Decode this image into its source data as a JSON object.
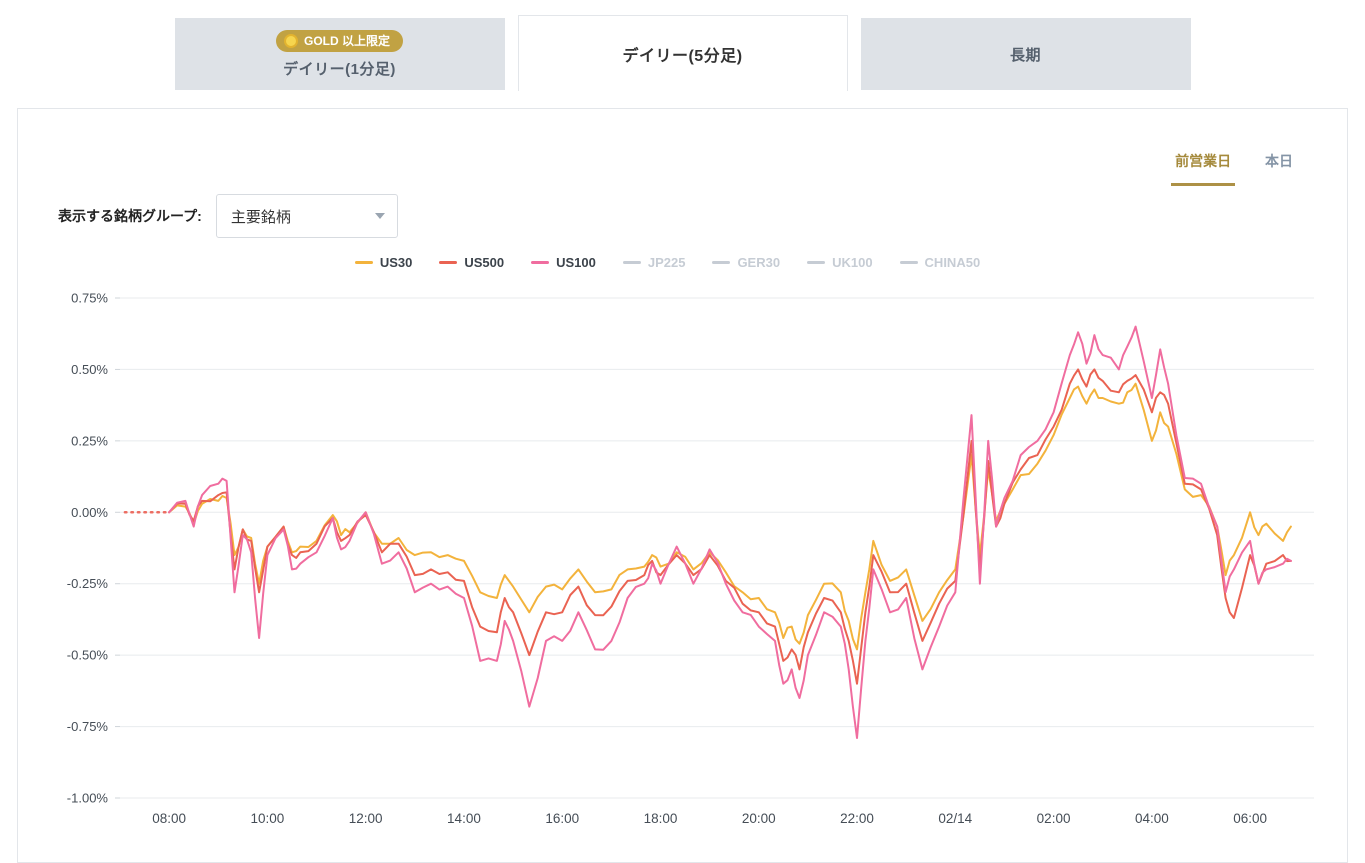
{
  "tabs": [
    {
      "label": "デイリー(1分足)",
      "badge": "GOLD 以上限定",
      "active": false
    },
    {
      "label": "デイリー(5分足)",
      "active": true
    },
    {
      "label": "長期",
      "active": false
    }
  ],
  "period_toggle": {
    "previous_day": "前営業日",
    "today": "本日"
  },
  "symbol_group": {
    "label": "表示する銘柄グループ:",
    "selected": "主要銘柄"
  },
  "legend": {
    "items": [
      {
        "label": "US30",
        "color": "#f3b33c",
        "active": true
      },
      {
        "label": "US500",
        "color": "#ea6352",
        "active": true
      },
      {
        "label": "US100",
        "color": "#f06d9f",
        "active": true
      },
      {
        "label": "JP225",
        "color": "#c6ccd4",
        "active": false
      },
      {
        "label": "GER30",
        "color": "#c6ccd4",
        "active": false
      },
      {
        "label": "UK100",
        "color": "#c6ccd4",
        "active": false
      },
      {
        "label": "CHINA50",
        "color": "#c6ccd4",
        "active": false
      }
    ]
  },
  "chart_data": {
    "type": "line",
    "title": "",
    "xlabel": "",
    "ylabel": "",
    "grid": true,
    "legend_position": "top",
    "xlim": [
      7.0,
      31.3
    ],
    "ylim": [
      -1.0,
      0.75
    ],
    "yticks": [
      {
        "v": 0.75,
        "label": "0.75%"
      },
      {
        "v": 0.5,
        "label": "0.50%"
      },
      {
        "v": 0.25,
        "label": "0.25%"
      },
      {
        "v": 0.0,
        "label": "0.00%"
      },
      {
        "v": -0.25,
        "label": "-0.25%"
      },
      {
        "v": -0.5,
        "label": "-0.50%"
      },
      {
        "v": -0.75,
        "label": "-0.75%"
      },
      {
        "v": -1.0,
        "label": "-1.00%"
      }
    ],
    "xticks": [
      {
        "t": 8,
        "label": "08:00"
      },
      {
        "t": 10,
        "label": "10:00"
      },
      {
        "t": 12,
        "label": "12:00"
      },
      {
        "t": 14,
        "label": "14:00"
      },
      {
        "t": 16,
        "label": "16:00"
      },
      {
        "t": 18,
        "label": "18:00"
      },
      {
        "t": 20,
        "label": "20:00"
      },
      {
        "t": 22,
        "label": "22:00"
      },
      {
        "t": 24,
        "label": "02/14"
      },
      {
        "t": 26,
        "label": "02:00"
      },
      {
        "t": 28,
        "label": "04:00"
      },
      {
        "t": 30,
        "label": "06:00"
      }
    ],
    "baseline": {
      "from": 7.1,
      "to": 8.02,
      "value": 0,
      "color": "#ec6d62"
    },
    "series": [
      {
        "name": "US30",
        "color": "#f3b33c",
        "active": true,
        "points": [
          [
            8,
            0
          ],
          [
            8.33,
            0.02
          ],
          [
            8.5,
            -0.04
          ],
          [
            8.67,
            0.03
          ],
          [
            9,
            0.04
          ],
          [
            9.17,
            0.05
          ],
          [
            9.33,
            -0.15
          ],
          [
            9.5,
            -0.06
          ],
          [
            9.67,
            -0.09
          ],
          [
            9.83,
            -0.25
          ],
          [
            10,
            -0.12
          ],
          [
            10.33,
            -0.05
          ],
          [
            10.5,
            -0.14
          ],
          [
            10.67,
            -0.12
          ],
          [
            11,
            -0.1
          ],
          [
            11.33,
            -0.01
          ],
          [
            11.5,
            -0.08
          ],
          [
            11.67,
            -0.07
          ],
          [
            12,
            0
          ],
          [
            12.33,
            -0.11
          ],
          [
            12.67,
            -0.09
          ],
          [
            13,
            -0.15
          ],
          [
            13.33,
            -0.14
          ],
          [
            13.67,
            -0.15
          ],
          [
            14,
            -0.17
          ],
          [
            14.33,
            -0.28
          ],
          [
            14.67,
            -0.3
          ],
          [
            14.83,
            -0.22
          ],
          [
            15,
            -0.26
          ],
          [
            15.33,
            -0.35
          ],
          [
            15.67,
            -0.26
          ],
          [
            16,
            -0.27
          ],
          [
            16.33,
            -0.2
          ],
          [
            16.67,
            -0.28
          ],
          [
            17,
            -0.27
          ],
          [
            17.33,
            -0.2
          ],
          [
            17.67,
            -0.19
          ],
          [
            17.83,
            -0.15
          ],
          [
            18,
            -0.19
          ],
          [
            18.33,
            -0.14
          ],
          [
            18.67,
            -0.2
          ],
          [
            19,
            -0.14
          ],
          [
            19.33,
            -0.21
          ],
          [
            19.67,
            -0.28
          ],
          [
            20,
            -0.3
          ],
          [
            20.33,
            -0.35
          ],
          [
            20.5,
            -0.44
          ],
          [
            20.67,
            -0.4
          ],
          [
            20.83,
            -0.46
          ],
          [
            21,
            -0.36
          ],
          [
            21.33,
            -0.25
          ],
          [
            21.67,
            -0.28
          ],
          [
            21.83,
            -0.38
          ],
          [
            22,
            -0.48
          ],
          [
            22.17,
            -0.28
          ],
          [
            22.33,
            -0.1
          ],
          [
            22.67,
            -0.24
          ],
          [
            23,
            -0.2
          ],
          [
            23.33,
            -0.38
          ],
          [
            23.67,
            -0.28
          ],
          [
            24,
            -0.2
          ],
          [
            24.33,
            0.2
          ],
          [
            24.5,
            -0.15
          ],
          [
            24.67,
            0.15
          ],
          [
            24.83,
            -0.03
          ],
          [
            25,
            0.03
          ],
          [
            25.33,
            0.13
          ],
          [
            25.67,
            0.17
          ],
          [
            26,
            0.27
          ],
          [
            26.33,
            0.4
          ],
          [
            26.5,
            0.44
          ],
          [
            26.67,
            0.38
          ],
          [
            26.83,
            0.43
          ],
          [
            27,
            0.4
          ],
          [
            27.33,
            0.38
          ],
          [
            27.5,
            0.42
          ],
          [
            27.67,
            0.45
          ],
          [
            28,
            0.25
          ],
          [
            28.17,
            0.35
          ],
          [
            28.33,
            0.3
          ],
          [
            28.67,
            0.08
          ],
          [
            29,
            0.06
          ],
          [
            29.33,
            -0.05
          ],
          [
            29.5,
            -0.22
          ],
          [
            29.67,
            -0.15
          ],
          [
            30,
            0
          ],
          [
            30.17,
            -0.08
          ],
          [
            30.33,
            -0.04
          ],
          [
            30.67,
            -0.1
          ],
          [
            30.83,
            -0.05
          ]
        ]
      },
      {
        "name": "US500",
        "color": "#ea6352",
        "active": true,
        "points": [
          [
            8,
            0
          ],
          [
            8.33,
            0.03
          ],
          [
            8.5,
            -0.03
          ],
          [
            8.67,
            0.04
          ],
          [
            9,
            0.06
          ],
          [
            9.17,
            0.07
          ],
          [
            9.33,
            -0.2
          ],
          [
            9.5,
            -0.06
          ],
          [
            9.67,
            -0.1
          ],
          [
            9.83,
            -0.28
          ],
          [
            10,
            -0.12
          ],
          [
            10.33,
            -0.05
          ],
          [
            10.5,
            -0.15
          ],
          [
            10.67,
            -0.14
          ],
          [
            11,
            -0.11
          ],
          [
            11.33,
            -0.02
          ],
          [
            11.5,
            -0.1
          ],
          [
            11.67,
            -0.08
          ],
          [
            12,
            -0.01
          ],
          [
            12.33,
            -0.14
          ],
          [
            12.67,
            -0.11
          ],
          [
            13,
            -0.22
          ],
          [
            13.33,
            -0.2
          ],
          [
            13.67,
            -0.21
          ],
          [
            14,
            -0.24
          ],
          [
            14.33,
            -0.4
          ],
          [
            14.67,
            -0.42
          ],
          [
            14.83,
            -0.3
          ],
          [
            15,
            -0.35
          ],
          [
            15.33,
            -0.5
          ],
          [
            15.67,
            -0.35
          ],
          [
            16,
            -0.35
          ],
          [
            16.33,
            -0.26
          ],
          [
            16.67,
            -0.36
          ],
          [
            17,
            -0.33
          ],
          [
            17.33,
            -0.24
          ],
          [
            17.67,
            -0.22
          ],
          [
            17.83,
            -0.17
          ],
          [
            18,
            -0.22
          ],
          [
            18.33,
            -0.15
          ],
          [
            18.67,
            -0.22
          ],
          [
            19,
            -0.15
          ],
          [
            19.33,
            -0.24
          ],
          [
            19.67,
            -0.32
          ],
          [
            20,
            -0.35
          ],
          [
            20.33,
            -0.4
          ],
          [
            20.5,
            -0.52
          ],
          [
            20.67,
            -0.48
          ],
          [
            20.83,
            -0.55
          ],
          [
            21,
            -0.42
          ],
          [
            21.33,
            -0.3
          ],
          [
            21.67,
            -0.35
          ],
          [
            21.83,
            -0.45
          ],
          [
            22,
            -0.6
          ],
          [
            22.17,
            -0.35
          ],
          [
            22.33,
            -0.15
          ],
          [
            22.67,
            -0.28
          ],
          [
            23,
            -0.25
          ],
          [
            23.33,
            -0.45
          ],
          [
            23.67,
            -0.32
          ],
          [
            24,
            -0.24
          ],
          [
            24.33,
            0.25
          ],
          [
            24.5,
            -0.2
          ],
          [
            24.67,
            0.18
          ],
          [
            24.83,
            -0.05
          ],
          [
            25,
            0.03
          ],
          [
            25.33,
            0.15
          ],
          [
            25.67,
            0.2
          ],
          [
            26,
            0.3
          ],
          [
            26.33,
            0.45
          ],
          [
            26.5,
            0.5
          ],
          [
            26.67,
            0.44
          ],
          [
            26.83,
            0.5
          ],
          [
            27,
            0.46
          ],
          [
            27.33,
            0.42
          ],
          [
            27.5,
            0.46
          ],
          [
            27.67,
            0.48
          ],
          [
            28,
            0.35
          ],
          [
            28.17,
            0.42
          ],
          [
            28.33,
            0.38
          ],
          [
            28.67,
            0.1
          ],
          [
            29,
            0.08
          ],
          [
            29.33,
            -0.08
          ],
          [
            29.5,
            -0.3
          ],
          [
            29.67,
            -0.37
          ],
          [
            30,
            -0.15
          ],
          [
            30.17,
            -0.25
          ],
          [
            30.33,
            -0.18
          ],
          [
            30.67,
            -0.15
          ],
          [
            30.83,
            -0.17
          ]
        ]
      },
      {
        "name": "US100",
        "color": "#f06d9f",
        "active": true,
        "points": [
          [
            8,
            0
          ],
          [
            8.33,
            0.04
          ],
          [
            8.5,
            -0.05
          ],
          [
            8.67,
            0.06
          ],
          [
            9,
            0.1
          ],
          [
            9.17,
            0.11
          ],
          [
            9.33,
            -0.28
          ],
          [
            9.5,
            -0.08
          ],
          [
            9.67,
            -0.14
          ],
          [
            9.83,
            -0.44
          ],
          [
            10,
            -0.15
          ],
          [
            10.33,
            -0.06
          ],
          [
            10.5,
            -0.2
          ],
          [
            10.67,
            -0.18
          ],
          [
            11,
            -0.14
          ],
          [
            11.33,
            -0.02
          ],
          [
            11.5,
            -0.13
          ],
          [
            11.67,
            -0.1
          ],
          [
            12,
            0
          ],
          [
            12.33,
            -0.18
          ],
          [
            12.67,
            -0.14
          ],
          [
            13,
            -0.28
          ],
          [
            13.33,
            -0.25
          ],
          [
            13.67,
            -0.26
          ],
          [
            14,
            -0.3
          ],
          [
            14.33,
            -0.52
          ],
          [
            14.67,
            -0.52
          ],
          [
            14.83,
            -0.38
          ],
          [
            15,
            -0.45
          ],
          [
            15.33,
            -0.68
          ],
          [
            15.67,
            -0.45
          ],
          [
            16,
            -0.45
          ],
          [
            16.33,
            -0.35
          ],
          [
            16.67,
            -0.48
          ],
          [
            17,
            -0.45
          ],
          [
            17.33,
            -0.3
          ],
          [
            17.67,
            -0.25
          ],
          [
            17.83,
            -0.18
          ],
          [
            18,
            -0.25
          ],
          [
            18.33,
            -0.12
          ],
          [
            18.67,
            -0.25
          ],
          [
            19,
            -0.13
          ],
          [
            19.33,
            -0.25
          ],
          [
            19.67,
            -0.35
          ],
          [
            20,
            -0.4
          ],
          [
            20.33,
            -0.45
          ],
          [
            20.5,
            -0.6
          ],
          [
            20.67,
            -0.55
          ],
          [
            20.83,
            -0.65
          ],
          [
            21,
            -0.5
          ],
          [
            21.33,
            -0.35
          ],
          [
            21.67,
            -0.4
          ],
          [
            21.83,
            -0.55
          ],
          [
            22,
            -0.79
          ],
          [
            22.17,
            -0.45
          ],
          [
            22.33,
            -0.2
          ],
          [
            22.67,
            -0.35
          ],
          [
            23,
            -0.3
          ],
          [
            23.33,
            -0.55
          ],
          [
            23.67,
            -0.4
          ],
          [
            24,
            -0.28
          ],
          [
            24.33,
            0.34
          ],
          [
            24.5,
            -0.25
          ],
          [
            24.67,
            0.25
          ],
          [
            24.83,
            -0.05
          ],
          [
            25,
            0.05
          ],
          [
            25.33,
            0.2
          ],
          [
            25.67,
            0.25
          ],
          [
            26,
            0.35
          ],
          [
            26.33,
            0.55
          ],
          [
            26.5,
            0.63
          ],
          [
            26.67,
            0.52
          ],
          [
            26.83,
            0.62
          ],
          [
            27,
            0.55
          ],
          [
            27.33,
            0.5
          ],
          [
            27.5,
            0.58
          ],
          [
            27.67,
            0.65
          ],
          [
            28,
            0.4
          ],
          [
            28.17,
            0.57
          ],
          [
            28.33,
            0.45
          ],
          [
            28.67,
            0.12
          ],
          [
            29,
            0.1
          ],
          [
            29.33,
            -0.05
          ],
          [
            29.5,
            -0.28
          ],
          [
            29.67,
            -0.2
          ],
          [
            30,
            -0.1
          ],
          [
            30.17,
            -0.25
          ],
          [
            30.33,
            -0.2
          ],
          [
            30.67,
            -0.18
          ],
          [
            30.83,
            -0.17
          ]
        ]
      },
      {
        "name": "JP225",
        "color": "#c6ccd4",
        "active": false,
        "points": []
      },
      {
        "name": "GER30",
        "color": "#c6ccd4",
        "active": false,
        "points": []
      },
      {
        "name": "UK100",
        "color": "#c6ccd4",
        "active": false,
        "points": []
      },
      {
        "name": "CHINA50",
        "color": "#c6ccd4",
        "active": false,
        "points": []
      }
    ]
  }
}
